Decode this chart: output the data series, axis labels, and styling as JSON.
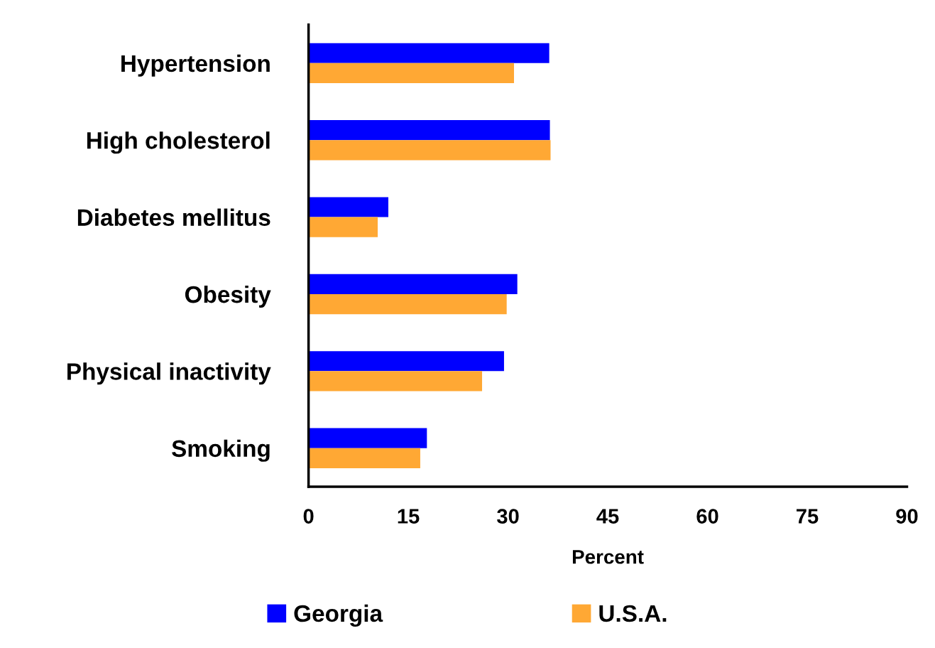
{
  "chart_data": {
    "type": "bar",
    "orientation": "horizontal",
    "xlabel": "Percent",
    "categories": [
      "Hypertension",
      "High cholesterol",
      "Diabetes mellitus",
      "Obesity",
      "Physical inactivity",
      "Smoking"
    ],
    "series": [
      {
        "name": "Georgia",
        "color": "#0000ff",
        "values": [
          36.2,
          36.3,
          12.0,
          31.4,
          29.4,
          17.8
        ]
      },
      {
        "name": "U.S.A.",
        "color": "#ffa834",
        "values": [
          30.9,
          36.4,
          10.4,
          29.8,
          26.1,
          16.8
        ]
      }
    ],
    "xlim": [
      0,
      90
    ],
    "xticks": [
      0,
      15,
      30,
      45,
      60,
      75,
      90
    ],
    "grid": false,
    "legend": "bottom"
  }
}
